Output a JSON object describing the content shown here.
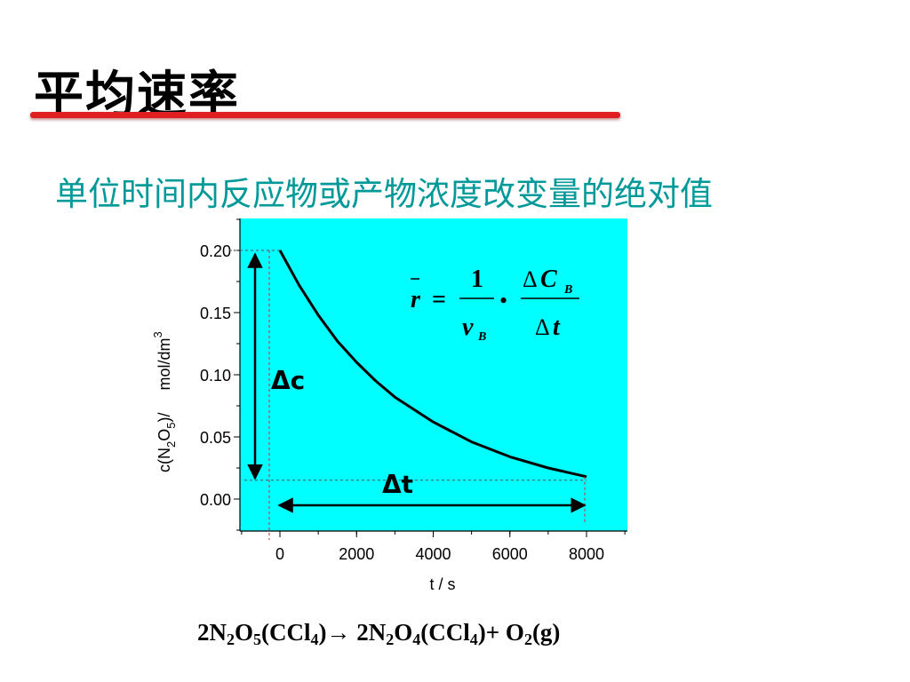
{
  "title": "平均速率",
  "subtitle": "单位时间内反应物或产物浓度改变量的绝对值",
  "colors": {
    "plot_background": "#00ffff",
    "title_underline": "#e02020",
    "subtitle_text": "#009999"
  },
  "chart_data": {
    "type": "line",
    "x": [
      0,
      500,
      1000,
      1500,
      2000,
      2500,
      3000,
      4000,
      5000,
      6000,
      7000,
      8000
    ],
    "y": [
      0.2,
      0.172,
      0.148,
      0.127,
      0.11,
      0.095,
      0.082,
      0.062,
      0.046,
      0.034,
      0.025,
      0.018
    ],
    "xlabel": "t / s",
    "ylabel_parts": [
      "c(N",
      "2",
      "O",
      "5",
      ")/",
      "mol/dm",
      "3"
    ],
    "xticks": [
      "0",
      "2000",
      "4000",
      "6000",
      "8000"
    ],
    "yticks": [
      "0.00",
      "0.05",
      "0.10",
      "0.15",
      "0.20"
    ],
    "xlim": [
      -1000,
      9000
    ],
    "ylim": [
      -0.025,
      0.225
    ],
    "grid": false,
    "annotations": {
      "delta_c": "Δc",
      "delta_t": "Δt"
    },
    "formula": {
      "r": "r",
      "eq": "=",
      "one": "1",
      "nu": "ν",
      "nu_sub": "B",
      "dot": "•",
      "delta": "Δ",
      "c": "C",
      "c_sub": "B",
      "t": "t"
    }
  },
  "reaction": {
    "lhs": [
      "2N",
      "2",
      "O",
      "5",
      "(CCl",
      "4",
      ")"
    ],
    "arrow": "→",
    "rhs1": [
      " 2N",
      "2",
      "O",
      "4",
      "(CCl",
      "4",
      ")"
    ],
    "plus": "+ ",
    "rhs2": [
      "O",
      "2",
      "(g)"
    ]
  }
}
